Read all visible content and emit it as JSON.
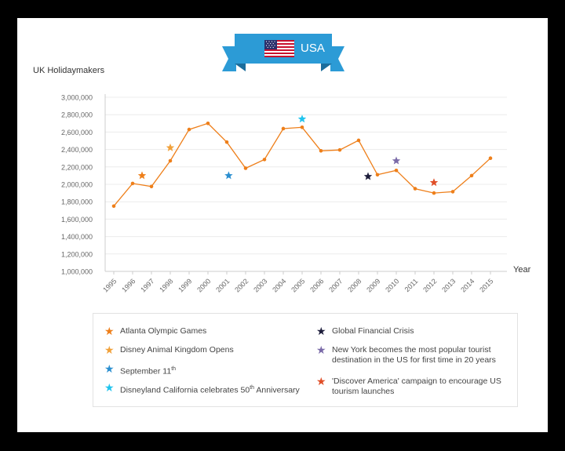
{
  "banner": {
    "title": "USA"
  },
  "chart_data": {
    "type": "line",
    "ylabel": "UK Holidaymakers",
    "xlabel": "Year",
    "ylim": [
      1000000,
      3000000
    ],
    "y_ticks": [
      1000000,
      1200000,
      1400000,
      1600000,
      1800000,
      2000000,
      2200000,
      2400000,
      2600000,
      2800000,
      3000000
    ],
    "y_tick_labels": [
      "1,000,000",
      "1,200,000",
      "1,400,000",
      "1,600,000",
      "1,800,000",
      "2,000,000",
      "2,200,000",
      "2,400,000",
      "2,600,000",
      "2,800,000",
      "3,000,000"
    ],
    "categories": [
      "1995",
      "1996",
      "1997",
      "1998",
      "1999",
      "2000",
      "2001",
      "2002",
      "2003",
      "2004",
      "2005",
      "2006",
      "2007",
      "2008",
      "2009",
      "2010",
      "2011",
      "2012",
      "2013",
      "2014",
      "2015"
    ],
    "values": [
      1750000,
      2010000,
      1975000,
      2270000,
      2630000,
      2700000,
      2485000,
      2185000,
      2285000,
      2640000,
      2655000,
      2385000,
      2395000,
      2505000,
      2110000,
      2160000,
      1950000,
      1900000,
      1915000,
      2100000,
      2300000
    ],
    "line_color": "#ee7f1a",
    "grid": true,
    "events": [
      {
        "x": 1996.5,
        "y": 2100000,
        "color": "#ee7f1a",
        "label": "Atlanta Olympic Games"
      },
      {
        "x": 1998,
        "y": 2420000,
        "color": "#f1a13a",
        "label": "Disney Animal Kingdom Opens"
      },
      {
        "x": 2001.1,
        "y": 2100000,
        "color": "#2b8fd0",
        "label": "September 11",
        "label_sup": "th"
      },
      {
        "x": 2005,
        "y": 2750000,
        "color": "#20c4ee",
        "label": "Disneyland California celebrates 50",
        "label_sup": "th",
        "label_suffix": " Anniversary"
      },
      {
        "x": 2008.5,
        "y": 2090000,
        "color": "#1c1c3a",
        "label": "Global Financial Crisis"
      },
      {
        "x": 2010,
        "y": 2270000,
        "color": "#7a6aa8",
        "label": "New York becomes the most popular tourist destination in the US for first time in 20 years"
      },
      {
        "x": 2012,
        "y": 2020000,
        "color": "#e04e27",
        "label": "'Discover America' campaign to encourage US tourism launches"
      }
    ]
  }
}
